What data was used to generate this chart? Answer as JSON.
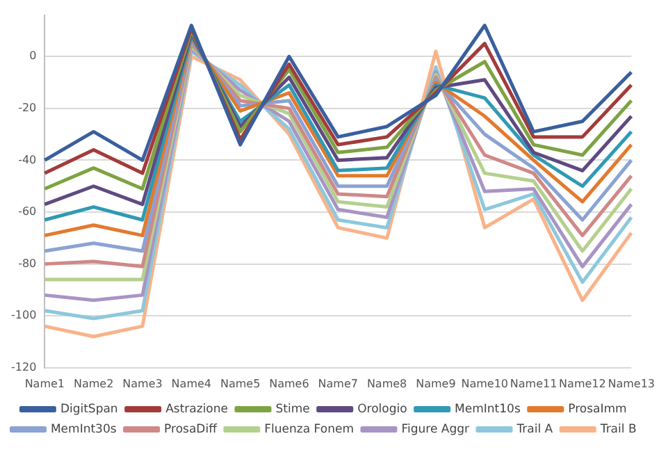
{
  "chart_data": {
    "type": "line",
    "categories": [
      "Name1",
      "Name2",
      "Name3",
      "Name4",
      "Name5",
      "Name6",
      "Name7",
      "Name8",
      "Name9",
      "Name10",
      "Name11",
      "Name12",
      "Name13"
    ],
    "series": [
      {
        "name": "DigitSpan",
        "color": "#3a5f9f",
        "values": [
          -40,
          -29,
          -40,
          12,
          -34,
          0,
          -31,
          -27,
          -15,
          12,
          -29,
          -25,
          -6
        ]
      },
      {
        "name": "Astrazione",
        "color": "#a33b3b",
        "values": [
          -45,
          -36,
          -45,
          11,
          -32,
          -3,
          -34,
          -31,
          -14,
          5,
          -31,
          -31,
          -11
        ]
      },
      {
        "name": "Stime",
        "color": "#7ea343",
        "values": [
          -51,
          -43,
          -51,
          10,
          -29,
          -5,
          -37,
          -35,
          -13,
          -2,
          -34,
          -38,
          -17
        ]
      },
      {
        "name": "Orologio",
        "color": "#5f4a82",
        "values": [
          -57,
          -50,
          -57,
          9,
          -27,
          -8,
          -40,
          -39,
          -12,
          -9,
          -37,
          -44,
          -23
        ]
      },
      {
        "name": "MemInt10s",
        "color": "#2f9ab5",
        "values": [
          -63,
          -58,
          -63,
          8,
          -25,
          -11,
          -44,
          -43,
          -11,
          -16,
          -38,
          -50,
          -29
        ]
      },
      {
        "name": "ProsaImm",
        "color": "#e27a2e",
        "values": [
          -69,
          -65,
          -69,
          7,
          -21,
          -14,
          -46,
          -46,
          -10,
          -23,
          -40,
          -56,
          -34
        ]
      },
      {
        "name": "MemInt30s",
        "color": "#8aa3d4",
        "values": [
          -75,
          -72,
          -75,
          6,
          -19,
          -17,
          -50,
          -50,
          -9,
          -30,
          -43,
          -63,
          -40
        ]
      },
      {
        "name": "ProsaDiff",
        "color": "#d08886",
        "values": [
          -80,
          -79,
          -81,
          5,
          -17,
          -20,
          -53,
          -54,
          -8,
          -38,
          -45,
          -69,
          -46
        ]
      },
      {
        "name": "Fluenza Fonem",
        "color": "#b4d08e",
        "values": [
          -86,
          -86,
          -86,
          4,
          -15,
          -22,
          -56,
          -58,
          -7,
          -45,
          -48,
          -75,
          -51
        ]
      },
      {
        "name": "Figure Aggr",
        "color": "#a894c4",
        "values": [
          -92,
          -94,
          -92,
          3,
          -13,
          -25,
          -59,
          -62,
          -6,
          -52,
          -51,
          -81,
          -57
        ]
      },
      {
        "name": "Trail A",
        "color": "#8dc8dc",
        "values": [
          -98,
          -101,
          -98,
          2,
          -11,
          -28,
          -63,
          -66,
          -4,
          -59,
          -53,
          -87,
          -62
        ]
      },
      {
        "name": "Trail B",
        "color": "#f9b38a",
        "values": [
          -104,
          -108,
          -104,
          0,
          -9,
          -30,
          -66,
          -70,
          2,
          -66,
          -55,
          -94,
          -68
        ]
      }
    ],
    "ylim": [
      -120,
      16
    ],
    "yticks": [
      -120,
      -100,
      -80,
      -60,
      -40,
      -20,
      0
    ],
    "grid": "y",
    "legend": "bottom",
    "marker": "none",
    "line_style": "solid"
  }
}
